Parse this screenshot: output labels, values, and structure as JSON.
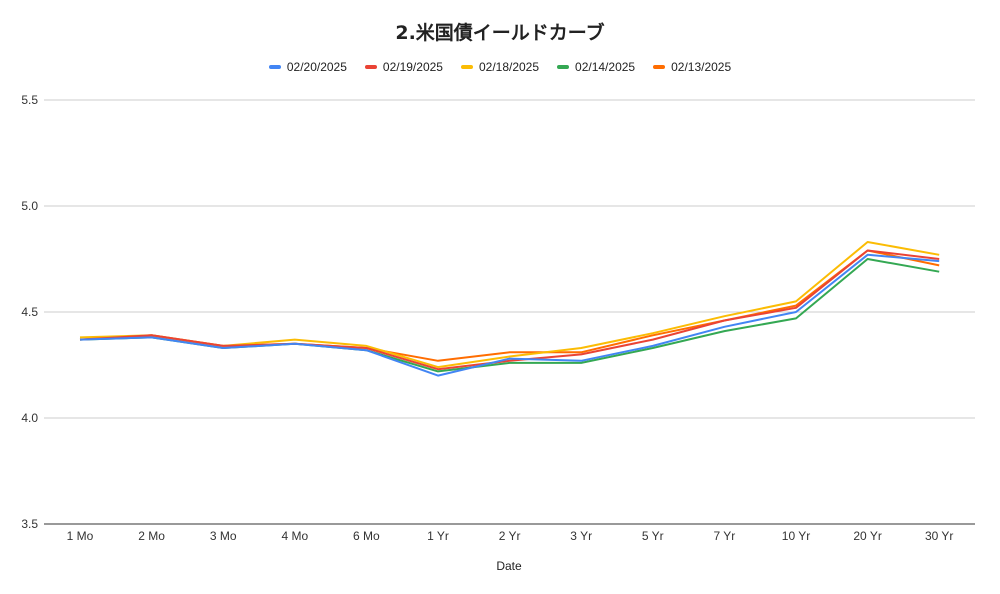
{
  "chart_data": {
    "type": "line",
    "title": "2.米国債イールドカーブ",
    "xlabel": "Date",
    "ylabel": "",
    "ylim": [
      3.5,
      5.5
    ],
    "yticks": [
      "3.5",
      "4.0",
      "4.5",
      "5.0",
      "5.5"
    ],
    "grid": true,
    "legend_position": "top",
    "categories": [
      "1 Mo",
      "2 Mo",
      "3 Mo",
      "4 Mo",
      "6 Mo",
      "1 Yr",
      "2 Yr",
      "3 Yr",
      "5 Yr",
      "7 Yr",
      "10 Yr",
      "20 Yr",
      "30 Yr"
    ],
    "series": [
      {
        "name": "02/20/2025",
        "color": "#4285F4",
        "values": [
          4.37,
          4.38,
          4.33,
          4.35,
          4.32,
          4.2,
          4.28,
          4.27,
          4.34,
          4.43,
          4.5,
          4.77,
          4.74
        ]
      },
      {
        "name": "02/19/2025",
        "color": "#EA4335",
        "values": [
          4.37,
          4.39,
          4.34,
          4.35,
          4.33,
          4.23,
          4.27,
          4.3,
          4.37,
          4.46,
          4.52,
          4.79,
          4.75
        ]
      },
      {
        "name": "02/18/2025",
        "color": "#FBBC04",
        "values": [
          4.38,
          4.39,
          4.34,
          4.37,
          4.34,
          4.24,
          4.29,
          4.33,
          4.4,
          4.48,
          4.55,
          4.83,
          4.77
        ]
      },
      {
        "name": "02/14/2025",
        "color": "#34A853",
        "values": [
          4.37,
          4.38,
          4.33,
          4.35,
          4.32,
          4.22,
          4.26,
          4.26,
          4.33,
          4.41,
          4.47,
          4.75,
          4.69
        ]
      },
      {
        "name": "02/13/2025",
        "color": "#FF6D01",
        "values": [
          4.37,
          4.39,
          4.34,
          4.35,
          4.33,
          4.27,
          4.31,
          4.31,
          4.39,
          4.46,
          4.53,
          4.79,
          4.72
        ]
      }
    ]
  }
}
